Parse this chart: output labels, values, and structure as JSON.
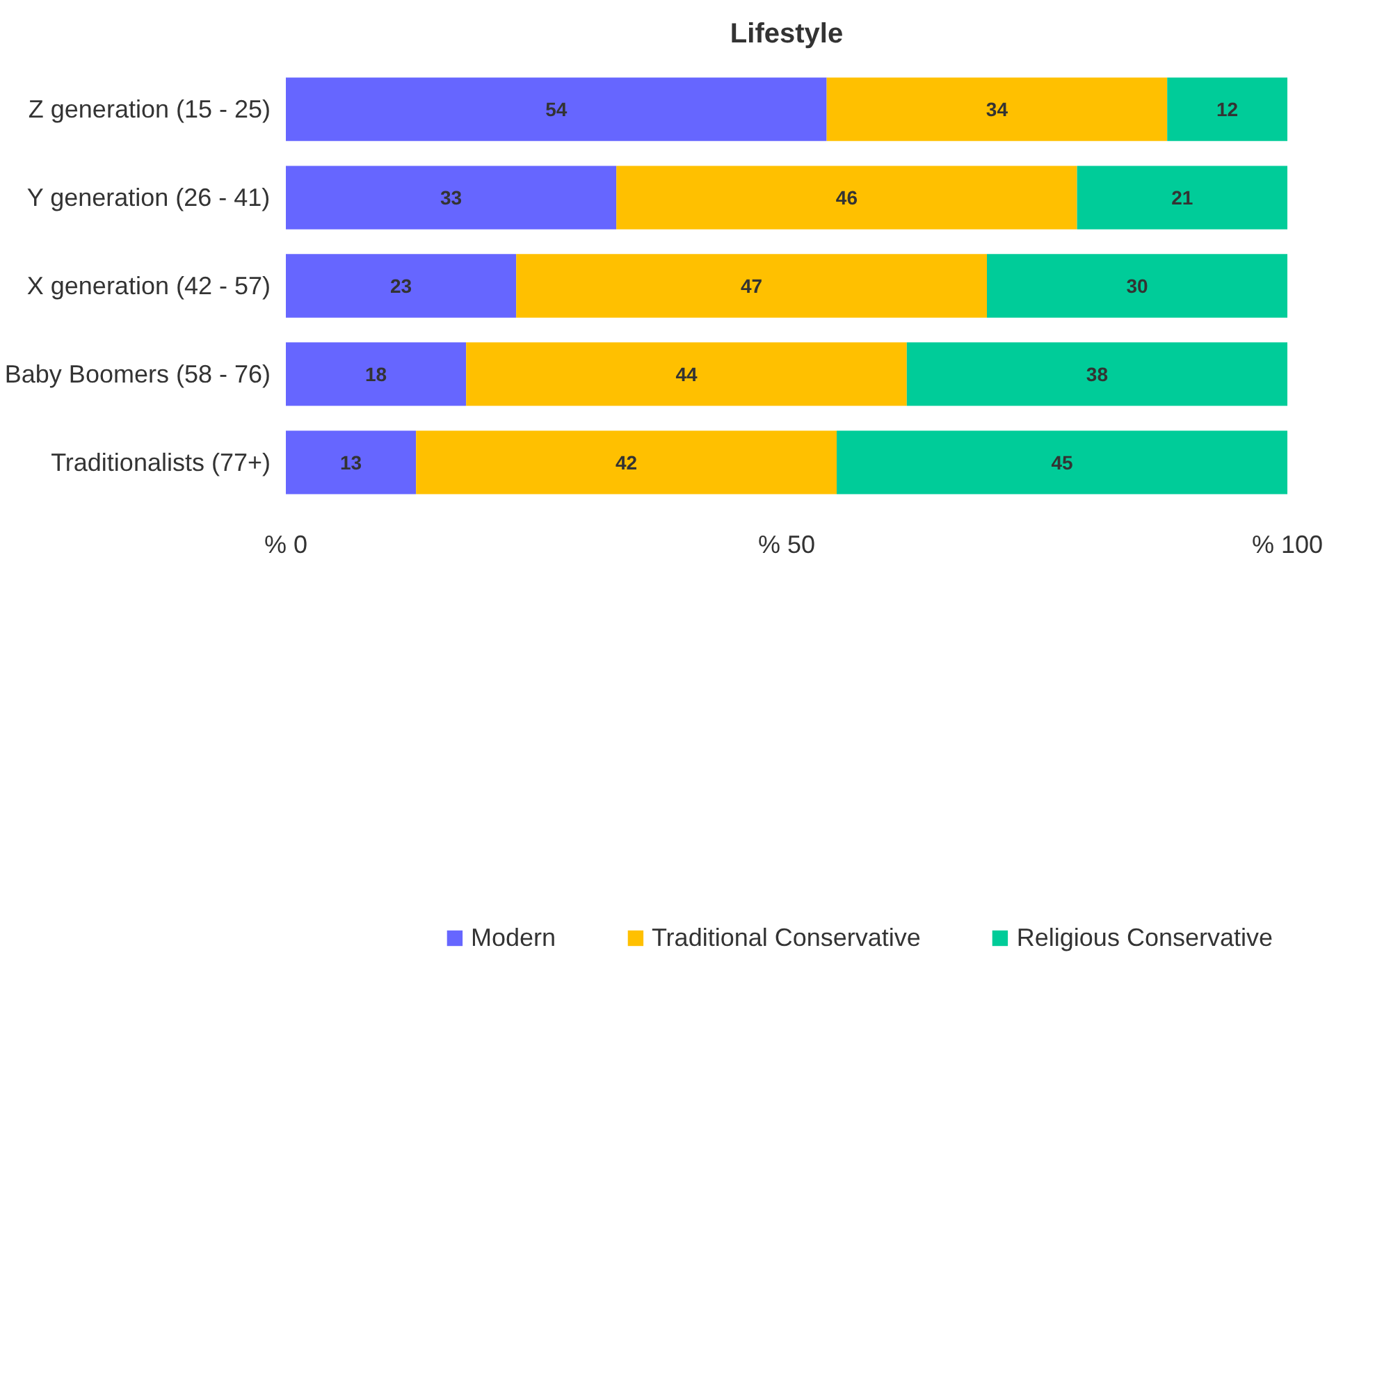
{
  "chart_data": {
    "type": "bar",
    "orientation": "horizontal",
    "stacked": true,
    "title": "Lifestyle",
    "categories": [
      "Z generation (15 - 25)",
      "Y generation (26 - 41)",
      "X generation (42 - 57)",
      "Baby Boomers (58 - 76)",
      "Traditionalists (77+)"
    ],
    "series": [
      {
        "name": "Modern",
        "color": "#6666ff",
        "values": [
          54,
          33,
          23,
          18,
          13
        ]
      },
      {
        "name": "Traditional Conservative",
        "color": "#ffc000",
        "values": [
          34,
          46,
          47,
          44,
          42
        ]
      },
      {
        "name": "Religious Conservative",
        "color": "#00cc99",
        "values": [
          12,
          21,
          30,
          38,
          45
        ]
      }
    ],
    "xlim": [
      0,
      100
    ],
    "xticks": [
      {
        "value": 0,
        "label": "% 0"
      },
      {
        "value": 50,
        "label": "% 50"
      },
      {
        "value": 100,
        "label": "% 100"
      }
    ],
    "data_labels": true,
    "grid": false,
    "legend": "bottom"
  }
}
